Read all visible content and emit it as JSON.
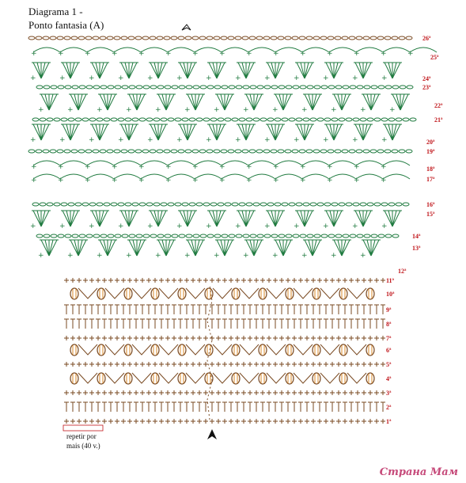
{
  "header": {
    "title_line1": "Diagrama 1 -",
    "title_line2": "Ponto fantasia (A)"
  },
  "repeat_note": {
    "line1": "repetir por",
    "line2": "mais (40 v.)"
  },
  "watermark": "Страна Мам",
  "colors": {
    "green": "#1f7a3f",
    "brown": "#7a4a22",
    "red": "#c0161b",
    "orange_bead": "#d98a2a"
  },
  "rows": [
    {
      "label": "1ª",
      "num": 1
    },
    {
      "label": "2ª",
      "num": 2
    },
    {
      "label": "3ª",
      "num": 3
    },
    {
      "label": "4ª",
      "num": 4
    },
    {
      "label": "5ª",
      "num": 5
    },
    {
      "label": "6ª",
      "num": 6
    },
    {
      "label": "7ª",
      "num": 7
    },
    {
      "label": "8ª",
      "num": 8
    },
    {
      "label": "9ª",
      "num": 9
    },
    {
      "label": "10ª",
      "num": 10
    },
    {
      "label": "11ª",
      "num": 11
    },
    {
      "label": "12ª",
      "num": 12
    },
    {
      "label": "13ª",
      "num": 13
    },
    {
      "label": "14ª",
      "num": 14
    },
    {
      "label": "15ª",
      "num": 15
    },
    {
      "label": "16ª",
      "num": 16
    },
    {
      "label": "17ª",
      "num": 17
    },
    {
      "label": "18ª",
      "num": 18
    },
    {
      "label": "19ª",
      "num": 19
    },
    {
      "label": "20ª",
      "num": 20
    },
    {
      "label": "21ª",
      "num": 21
    },
    {
      "label": "22ª",
      "num": 22
    },
    {
      "label": "23ª",
      "num": 23
    },
    {
      "label": "24ª",
      "num": 24
    },
    {
      "label": "25ª",
      "num": 25
    },
    {
      "label": "26ª",
      "num": 26
    }
  ]
}
